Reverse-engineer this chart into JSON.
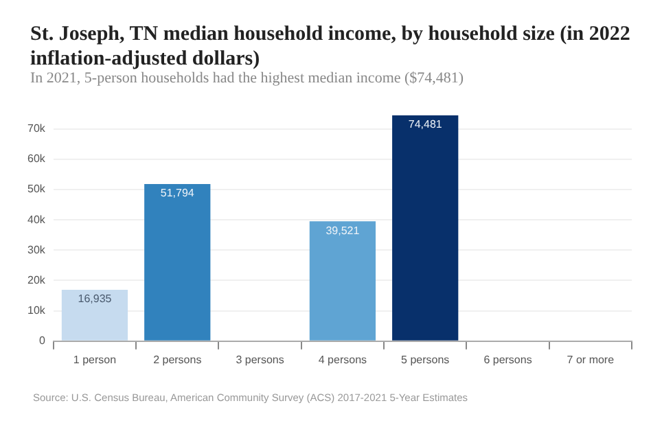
{
  "chart_data": {
    "type": "bar",
    "title": "St. Joseph, TN median household income, by household size (in 2022 inflation-adjusted dollars)",
    "subtitle": "In 2021, 5-person households had the highest median income ($74,481)",
    "categories": [
      "1 person",
      "2 persons",
      "3 persons",
      "4 persons",
      "5 persons",
      "6 persons",
      "7 or more"
    ],
    "values": [
      16935,
      51794,
      null,
      39521,
      74481,
      null,
      null
    ],
    "colors": [
      "#c6dbef",
      "#3182bd",
      "#3182bd",
      "#5fa4d3",
      "#08306b",
      "#08306b",
      "#08306b"
    ],
    "value_labels": [
      "16,935",
      "51,794",
      null,
      "39,521",
      "74,481",
      null,
      null
    ],
    "ylim": [
      0,
      75000
    ],
    "yticks": [
      0,
      {
        "value": 10000,
        "label": "10k"
      },
      {
        "value": 20000,
        "label": "20k"
      },
      {
        "value": 30000,
        "label": "30k"
      },
      {
        "value": 40000,
        "label": "40k"
      },
      {
        "value": 50000,
        "label": "50k"
      },
      {
        "value": 60000,
        "label": "60k"
      },
      {
        "value": 70000,
        "label": "70k"
      }
    ],
    "grid": "y",
    "legend": false,
    "annotations": [
      "Source: U.S. Census Bureau, American Community Survey (ACS) 2017-2021 5-Year Estimates"
    ]
  }
}
